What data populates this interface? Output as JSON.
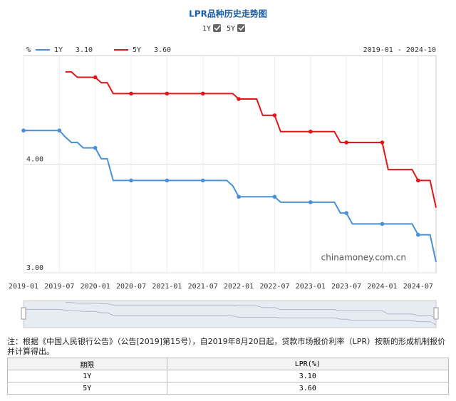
{
  "chart_data": {
    "type": "line",
    "title": "LPR品种历史走势图",
    "unit": "%",
    "range_label": "2019-01 - 2024-10",
    "watermark": "chinamoney.com.cn",
    "x": [
      "2019-01",
      "2019-02",
      "2019-03",
      "2019-04",
      "2019-05",
      "2019-06",
      "2019-07",
      "2019-08",
      "2019-09",
      "2019-10",
      "2019-11",
      "2019-12",
      "2020-01",
      "2020-02",
      "2020-03",
      "2020-04",
      "2020-05",
      "2020-06",
      "2020-07",
      "2020-08",
      "2020-09",
      "2020-10",
      "2020-11",
      "2020-12",
      "2021-01",
      "2021-02",
      "2021-03",
      "2021-04",
      "2021-05",
      "2021-06",
      "2021-07",
      "2021-08",
      "2021-09",
      "2021-10",
      "2021-11",
      "2021-12",
      "2022-01",
      "2022-02",
      "2022-03",
      "2022-04",
      "2022-05",
      "2022-06",
      "2022-07",
      "2022-08",
      "2022-09",
      "2022-10",
      "2022-11",
      "2022-12",
      "2023-01",
      "2023-02",
      "2023-03",
      "2023-04",
      "2023-05",
      "2023-06",
      "2023-07",
      "2023-08",
      "2023-09",
      "2023-10",
      "2023-11",
      "2023-12",
      "2024-01",
      "2024-02",
      "2024-03",
      "2024-04",
      "2024-05",
      "2024-06",
      "2024-07",
      "2024-08",
      "2024-09",
      "2024-10"
    ],
    "xticks": [
      "2019-01",
      "2019-07",
      "2020-01",
      "2020-07",
      "2021-01",
      "2021-07",
      "2022-01",
      "2022-07",
      "2023-01",
      "2023-07",
      "2024-01",
      "2024-07"
    ],
    "ylim": [
      3,
      5
    ],
    "yticks": [
      {
        "value": 3,
        "label": "3.00"
      },
      {
        "value": 4,
        "label": "4.00"
      }
    ],
    "grid": true,
    "series": [
      {
        "name": "1Y",
        "color": "#4a90d9",
        "latest_label": "3.10",
        "values": [
          4.31,
          4.31,
          4.31,
          4.31,
          4.31,
          4.31,
          4.31,
          4.25,
          4.2,
          4.2,
          4.15,
          4.15,
          4.15,
          4.05,
          4.05,
          3.85,
          3.85,
          3.85,
          3.85,
          3.85,
          3.85,
          3.85,
          3.85,
          3.85,
          3.85,
          3.85,
          3.85,
          3.85,
          3.85,
          3.85,
          3.85,
          3.85,
          3.85,
          3.85,
          3.85,
          3.8,
          3.7,
          3.7,
          3.7,
          3.7,
          3.7,
          3.7,
          3.7,
          3.65,
          3.65,
          3.65,
          3.65,
          3.65,
          3.65,
          3.65,
          3.65,
          3.65,
          3.65,
          3.55,
          3.55,
          3.45,
          3.45,
          3.45,
          3.45,
          3.45,
          3.45,
          3.45,
          3.45,
          3.45,
          3.45,
          3.45,
          3.35,
          3.35,
          3.35,
          3.1
        ]
      },
      {
        "name": "5Y",
        "color": "#e0161b",
        "latest_label": "3.60",
        "values": [
          null,
          null,
          null,
          null,
          null,
          null,
          null,
          4.85,
          4.85,
          4.8,
          4.8,
          4.8,
          4.8,
          4.75,
          4.75,
          4.65,
          4.65,
          4.65,
          4.65,
          4.65,
          4.65,
          4.65,
          4.65,
          4.65,
          4.65,
          4.65,
          4.65,
          4.65,
          4.65,
          4.65,
          4.65,
          4.65,
          4.65,
          4.65,
          4.65,
          4.65,
          4.6,
          4.6,
          4.6,
          4.6,
          4.45,
          4.45,
          4.45,
          4.3,
          4.3,
          4.3,
          4.3,
          4.3,
          4.3,
          4.3,
          4.3,
          4.3,
          4.3,
          4.2,
          4.2,
          4.2,
          4.2,
          4.2,
          4.2,
          4.2,
          4.2,
          3.95,
          3.95,
          3.95,
          3.95,
          3.95,
          3.85,
          3.85,
          3.85,
          3.6
        ]
      }
    ]
  },
  "note": "注：根据《中国人民银行公告》（公告[2019]第15号），自2019年8月20日起，贷款市场报价利率（LPR）按新的形成机制报价并计算得出。",
  "table": {
    "header": [
      "期限",
      "LPR(%)"
    ],
    "rows": [
      [
        "1Y",
        "3.10"
      ],
      [
        "5Y",
        "3.60"
      ]
    ]
  }
}
